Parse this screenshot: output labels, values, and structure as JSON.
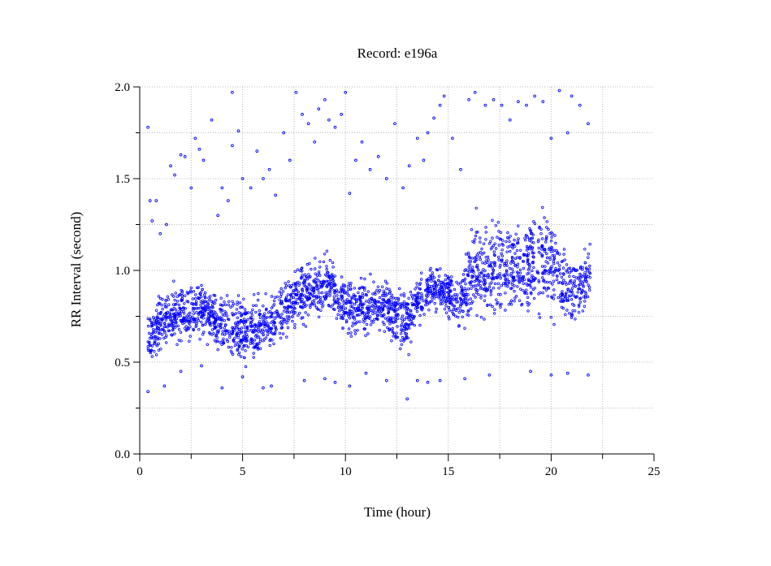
{
  "chart_data": {
    "type": "scatter",
    "title": "Record:  e196a",
    "xlabel": "Time (hour)",
    "ylabel": "RR Interval (second)",
    "xlim": [
      0,
      25
    ],
    "ylim": [
      0,
      2.0
    ],
    "xticks": [
      "0",
      "5",
      "10",
      "15",
      "20",
      "25"
    ],
    "yticks": [
      "0.0",
      "0.5",
      "1.0",
      "1.5",
      "2.0"
    ],
    "grid": true,
    "marker_color": "#0000ff",
    "series": [
      {
        "band": [
          {
            "x": 0.4,
            "center": 0.64,
            "spread": 0.1
          },
          {
            "x": 1.0,
            "center": 0.71,
            "spread": 0.12
          },
          {
            "x": 2.0,
            "center": 0.77,
            "spread": 0.12
          },
          {
            "x": 3.0,
            "center": 0.78,
            "spread": 0.12
          },
          {
            "x": 3.8,
            "center": 0.72,
            "spread": 0.1
          },
          {
            "x": 4.6,
            "center": 0.68,
            "spread": 0.16
          },
          {
            "x": 5.5,
            "center": 0.68,
            "spread": 0.14
          },
          {
            "x": 6.5,
            "center": 0.73,
            "spread": 0.12
          },
          {
            "x": 7.3,
            "center": 0.82,
            "spread": 0.14
          },
          {
            "x": 8.2,
            "center": 0.9,
            "spread": 0.12
          },
          {
            "x": 9.2,
            "center": 0.92,
            "spread": 0.12
          },
          {
            "x": 10.0,
            "center": 0.82,
            "spread": 0.13
          },
          {
            "x": 11.0,
            "center": 0.8,
            "spread": 0.12
          },
          {
            "x": 12.0,
            "center": 0.81,
            "spread": 0.12
          },
          {
            "x": 13.0,
            "center": 0.72,
            "spread": 0.14
          },
          {
            "x": 13.8,
            "center": 0.88,
            "spread": 0.1
          },
          {
            "x": 14.8,
            "center": 0.9,
            "spread": 0.1
          },
          {
            "x": 15.6,
            "center": 0.82,
            "spread": 0.12
          },
          {
            "x": 16.2,
            "center": 1.0,
            "spread": 0.2
          },
          {
            "x": 17.5,
            "center": 1.0,
            "spread": 0.22
          },
          {
            "x": 18.8,
            "center": 1.02,
            "spread": 0.22
          },
          {
            "x": 19.8,
            "center": 1.08,
            "spread": 0.25
          },
          {
            "x": 20.5,
            "center": 0.92,
            "spread": 0.2
          },
          {
            "x": 21.2,
            "center": 0.88,
            "spread": 0.14
          },
          {
            "x": 21.9,
            "center": 0.98,
            "spread": 0.14
          }
        ],
        "outliers": [
          [
            0.4,
            1.78
          ],
          [
            0.5,
            1.38
          ],
          [
            0.6,
            1.27
          ],
          [
            0.8,
            1.38
          ],
          [
            1.0,
            1.2
          ],
          [
            1.3,
            1.25
          ],
          [
            1.5,
            1.57
          ],
          [
            1.7,
            1.52
          ],
          [
            2.0,
            1.63
          ],
          [
            2.2,
            1.62
          ],
          [
            2.5,
            1.45
          ],
          [
            2.7,
            1.72
          ],
          [
            2.9,
            1.66
          ],
          [
            3.1,
            1.6
          ],
          [
            3.5,
            1.82
          ],
          [
            3.8,
            1.3
          ],
          [
            4.0,
            1.45
          ],
          [
            4.3,
            1.38
          ],
          [
            4.5,
            1.68
          ],
          [
            4.5,
            1.97
          ],
          [
            4.8,
            1.76
          ],
          [
            5.0,
            1.5
          ],
          [
            5.4,
            1.45
          ],
          [
            5.7,
            1.65
          ],
          [
            6.0,
            1.5
          ],
          [
            6.3,
            1.55
          ],
          [
            6.6,
            1.41
          ],
          [
            7.0,
            1.75
          ],
          [
            7.3,
            1.6
          ],
          [
            7.6,
            1.97
          ],
          [
            7.9,
            1.85
          ],
          [
            8.2,
            1.8
          ],
          [
            8.5,
            1.7
          ],
          [
            8.7,
            1.88
          ],
          [
            9.0,
            1.93
          ],
          [
            9.2,
            1.82
          ],
          [
            9.5,
            1.78
          ],
          [
            9.8,
            1.85
          ],
          [
            10.0,
            1.97
          ],
          [
            10.2,
            1.42
          ],
          [
            10.5,
            1.6
          ],
          [
            10.8,
            1.7
          ],
          [
            11.2,
            1.55
          ],
          [
            11.6,
            1.62
          ],
          [
            12.0,
            1.5
          ],
          [
            12.4,
            1.8
          ],
          [
            12.8,
            1.45
          ],
          [
            13.1,
            1.57
          ],
          [
            13.5,
            1.72
          ],
          [
            13.8,
            1.6
          ],
          [
            14.0,
            1.75
          ],
          [
            14.3,
            1.83
          ],
          [
            14.6,
            1.9
          ],
          [
            14.8,
            1.95
          ],
          [
            15.2,
            1.72
          ],
          [
            15.6,
            1.55
          ],
          [
            16.0,
            1.93
          ],
          [
            16.3,
            1.97
          ],
          [
            16.8,
            1.9
          ],
          [
            17.2,
            1.93
          ],
          [
            17.6,
            1.9
          ],
          [
            18.0,
            1.82
          ],
          [
            18.4,
            1.92
          ],
          [
            18.8,
            1.9
          ],
          [
            19.2,
            1.95
          ],
          [
            19.6,
            1.92
          ],
          [
            20.0,
            1.72
          ],
          [
            20.4,
            1.98
          ],
          [
            20.8,
            1.75
          ],
          [
            21.0,
            1.95
          ],
          [
            21.4,
            1.9
          ],
          [
            21.8,
            1.8
          ],
          [
            0.4,
            0.34
          ],
          [
            1.2,
            0.37
          ],
          [
            2.0,
            0.45
          ],
          [
            3.0,
            0.48
          ],
          [
            4.0,
            0.36
          ],
          [
            5.0,
            0.42
          ],
          [
            6.0,
            0.36
          ],
          [
            6.4,
            0.37
          ],
          [
            8.0,
            0.4
          ],
          [
            9.0,
            0.41
          ],
          [
            9.5,
            0.39
          ],
          [
            10.2,
            0.37
          ],
          [
            11.0,
            0.44
          ],
          [
            12.0,
            0.4
          ],
          [
            13.0,
            0.3
          ],
          [
            13.5,
            0.4
          ],
          [
            14.0,
            0.39
          ],
          [
            14.6,
            0.4
          ],
          [
            15.8,
            0.41
          ],
          [
            17.0,
            0.43
          ],
          [
            19.0,
            0.45
          ],
          [
            20.0,
            0.43
          ],
          [
            20.8,
            0.44
          ],
          [
            21.8,
            0.43
          ]
        ]
      }
    ]
  }
}
